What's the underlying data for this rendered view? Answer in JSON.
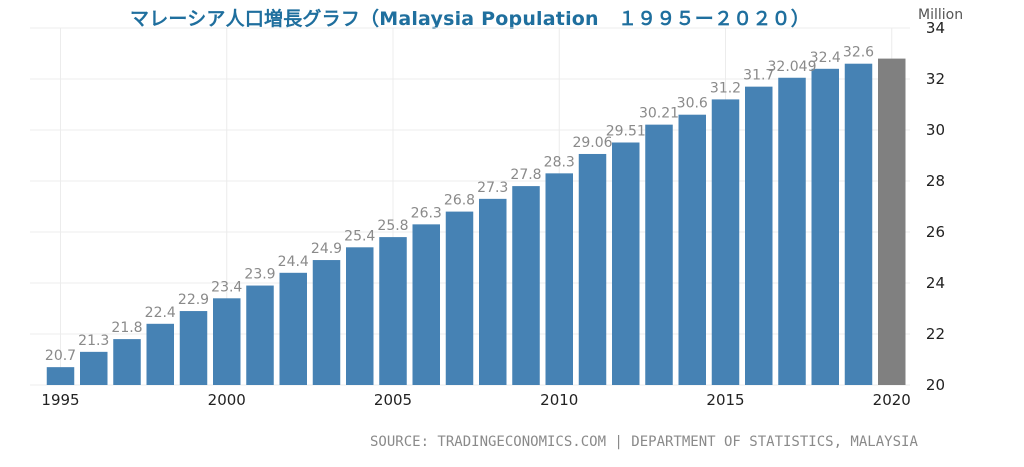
{
  "title": "マレーシア人口増長グラフ（Malaysia Population　１９９５ー２０２０）",
  "unit_label": "Million",
  "source": "SOURCE: TRADINGECONOMICS.COM | DEPARTMENT OF STATISTICS, MALAYSIA",
  "colors": {
    "bar": "#4682b4",
    "highlight": "#808080",
    "title": "#1f6f9e"
  },
  "chart_data": {
    "type": "bar",
    "categories": [
      "1995",
      "1996",
      "1997",
      "1998",
      "1999",
      "2000",
      "2001",
      "2002",
      "2003",
      "2004",
      "2005",
      "2006",
      "2007",
      "2008",
      "2009",
      "2010",
      "2011",
      "2012",
      "2013",
      "2014",
      "2015",
      "2016",
      "2017",
      "2018",
      "2019",
      "2020"
    ],
    "values": [
      20.7,
      21.3,
      21.8,
      22.4,
      22.9,
      23.4,
      23.9,
      24.4,
      24.9,
      25.4,
      25.8,
      26.3,
      26.8,
      27.3,
      27.8,
      28.3,
      29.06,
      29.51,
      30.21,
      30.6,
      31.2,
      31.7,
      32.049,
      32.4,
      32.6,
      32.8
    ],
    "data_labels": [
      "20.7",
      "21.3",
      "21.8",
      "22.4",
      "22.9",
      "23.4",
      "23.9",
      "24.4",
      "24.9",
      "25.4",
      "25.8",
      "26.3",
      "26.8",
      "27.3",
      "27.8",
      "28.3",
      "29.06",
      "29.51",
      "30.21",
      "30.6",
      "31.2",
      "31.7",
      "32.049",
      "32.4",
      "32.6",
      ""
    ],
    "highlight_index": 25,
    "x_tick_labels": [
      "1995",
      "2000",
      "2005",
      "2010",
      "2015",
      "2020"
    ],
    "y_ticks": [
      20,
      22,
      24,
      26,
      28,
      30,
      32,
      34
    ],
    "ylim": [
      20,
      34
    ],
    "y_axis_side": "right",
    "grid": true,
    "xlabel": "",
    "ylabel": ""
  }
}
